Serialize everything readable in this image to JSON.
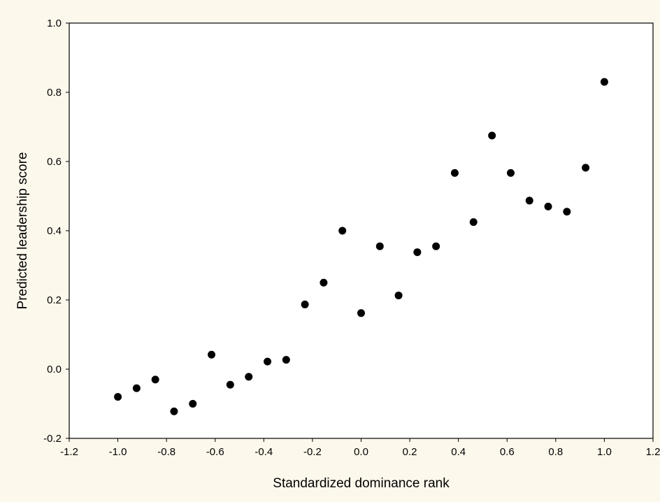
{
  "colors": {
    "background": "#fdf8ec",
    "plot_area": "#ffffff",
    "point": "#000000"
  },
  "chart_data": {
    "type": "scatter",
    "title": "",
    "xlabel": "Standardized dominance rank",
    "ylabel": "Predicted leadership score",
    "xlim": [
      -1.2,
      1.2
    ],
    "ylim": [
      -0.2,
      1.0
    ],
    "xticks": [
      -1.2,
      -1.0,
      -0.8,
      -0.6,
      -0.4,
      -0.2,
      0.0,
      0.2,
      0.4,
      0.6,
      0.8,
      1.0,
      1.2
    ],
    "xtick_labels": [
      "-1.2",
      "-1.0",
      "-0.8",
      "-0.6",
      "-0.4",
      "-0.2",
      "0.0",
      "0.2",
      "0.4",
      "0.6",
      "0.8",
      "1.0",
      "1.2"
    ],
    "yticks": [
      -0.2,
      0.0,
      0.2,
      0.4,
      0.6,
      0.8,
      1.0
    ],
    "ytick_labels": [
      "-0.2",
      "0.0",
      "0.2",
      "0.4",
      "0.6",
      "0.8",
      "1.0"
    ],
    "grid": false,
    "legend": "none",
    "points": [
      {
        "x": -1.0,
        "y": -0.08
      },
      {
        "x": -0.923,
        "y": -0.055
      },
      {
        "x": -0.846,
        "y": -0.03
      },
      {
        "x": -0.769,
        "y": -0.122
      },
      {
        "x": -0.692,
        "y": -0.1
      },
      {
        "x": -0.615,
        "y": 0.042
      },
      {
        "x": -0.538,
        "y": -0.045
      },
      {
        "x": -0.462,
        "y": -0.022
      },
      {
        "x": -0.385,
        "y": 0.022
      },
      {
        "x": -0.308,
        "y": 0.027
      },
      {
        "x": -0.231,
        "y": 0.187
      },
      {
        "x": -0.154,
        "y": 0.25
      },
      {
        "x": -0.077,
        "y": 0.4
      },
      {
        "x": 0.0,
        "y": 0.162
      },
      {
        "x": 0.077,
        "y": 0.355
      },
      {
        "x": 0.154,
        "y": 0.213
      },
      {
        "x": 0.231,
        "y": 0.338
      },
      {
        "x": 0.308,
        "y": 0.355
      },
      {
        "x": 0.385,
        "y": 0.567
      },
      {
        "x": 0.462,
        "y": 0.425
      },
      {
        "x": 0.538,
        "y": 0.675
      },
      {
        "x": 0.615,
        "y": 0.567
      },
      {
        "x": 0.692,
        "y": 0.487
      },
      {
        "x": 0.769,
        "y": 0.47
      },
      {
        "x": 0.846,
        "y": 0.455
      },
      {
        "x": 0.923,
        "y": 0.582
      },
      {
        "x": 1.0,
        "y": 0.83
      }
    ]
  }
}
